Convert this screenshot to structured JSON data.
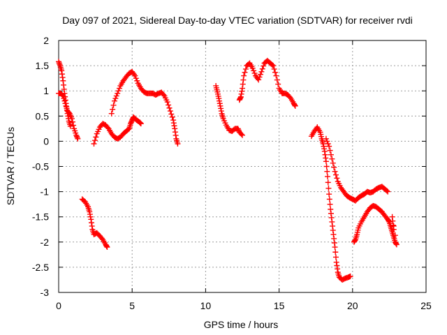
{
  "chart_data": {
    "type": "scatter",
    "title": "Day 097 of 2021, Sidereal Day-to-day VTEC variation (SDTVAR) for receiver rvdi",
    "xlabel": "GPS time / hours",
    "ylabel": "SDTVAR / TECUs",
    "xlim": [
      0,
      25
    ],
    "ylim": [
      -3,
      2
    ],
    "xticks": [
      0,
      5,
      10,
      15,
      20,
      25
    ],
    "yticks": [
      -3,
      -2.5,
      -2,
      -1.5,
      -1,
      -0.5,
      0,
      0.5,
      1,
      1.5,
      2
    ],
    "grid": true,
    "marker": "+",
    "series": [
      {
        "name": "SDTVAR",
        "color": "#ff0000",
        "segments": [
          [
            [
              0.0,
              1.58
            ],
            [
              0.1,
              1.5
            ],
            [
              0.2,
              1.4
            ],
            [
              0.3,
              1.2
            ],
            [
              0.4,
              0.95
            ],
            [
              0.5,
              0.75
            ],
            [
              0.6,
              0.55
            ],
            [
              0.7,
              0.4
            ],
            [
              0.8,
              0.3
            ]
          ],
          [
            [
              0.0,
              0.95
            ],
            [
              0.15,
              0.95
            ],
            [
              0.3,
              0.9
            ],
            [
              0.45,
              0.75
            ],
            [
              0.6,
              0.6
            ],
            [
              0.75,
              0.55
            ],
            [
              0.9,
              0.45
            ],
            [
              1.05,
              0.25
            ],
            [
              1.2,
              0.12
            ],
            [
              1.3,
              0.05
            ]
          ],
          [
            [
              2.4,
              -0.05
            ],
            [
              2.6,
              0.15
            ],
            [
              2.8,
              0.28
            ],
            [
              3.0,
              0.35
            ],
            [
              3.2,
              0.32
            ],
            [
              3.4,
              0.25
            ],
            [
              3.6,
              0.15
            ],
            [
              3.8,
              0.08
            ],
            [
              4.0,
              0.05
            ],
            [
              4.2,
              0.08
            ],
            [
              4.4,
              0.15
            ],
            [
              4.6,
              0.2
            ],
            [
              4.8,
              0.25
            ],
            [
              4.9,
              0.35
            ],
            [
              5.0,
              0.42
            ],
            [
              5.1,
              0.48
            ],
            [
              5.3,
              0.42
            ],
            [
              5.5,
              0.38
            ],
            [
              5.6,
              0.35
            ]
          ],
          [
            [
              3.6,
              0.55
            ],
            [
              3.8,
              0.8
            ],
            [
              4.0,
              0.95
            ],
            [
              4.2,
              1.1
            ],
            [
              4.4,
              1.2
            ],
            [
              4.6,
              1.28
            ],
            [
              4.8,
              1.35
            ],
            [
              5.0,
              1.38
            ],
            [
              5.2,
              1.3
            ],
            [
              5.4,
              1.15
            ],
            [
              5.6,
              1.05
            ],
            [
              5.8,
              0.98
            ],
            [
              6.0,
              0.95
            ],
            [
              6.2,
              0.95
            ],
            [
              6.4,
              0.95
            ],
            [
              6.6,
              0.92
            ],
            [
              6.8,
              0.95
            ],
            [
              7.0,
              0.97
            ],
            [
              7.2,
              0.9
            ],
            [
              7.4,
              0.78
            ],
            [
              7.6,
              0.6
            ],
            [
              7.8,
              0.42
            ],
            [
              7.9,
              0.25
            ],
            [
              8.0,
              0.05
            ],
            [
              8.1,
              -0.05
            ]
          ],
          [
            [
              1.6,
              -1.15
            ],
            [
              1.8,
              -1.2
            ],
            [
              2.0,
              -1.3
            ],
            [
              2.1,
              -1.4
            ],
            [
              2.2,
              -1.55
            ],
            [
              2.3,
              -1.75
            ],
            [
              2.4,
              -1.85
            ],
            [
              2.6,
              -1.82
            ],
            [
              2.8,
              -1.88
            ],
            [
              3.0,
              -1.95
            ],
            [
              3.2,
              -2.05
            ],
            [
              3.3,
              -2.1
            ]
          ],
          [
            [
              10.7,
              1.1
            ],
            [
              10.8,
              0.98
            ],
            [
              10.9,
              0.85
            ],
            [
              11.0,
              0.7
            ],
            [
              11.1,
              0.55
            ],
            [
              11.2,
              0.45
            ],
            [
              11.4,
              0.32
            ],
            [
              11.6,
              0.22
            ],
            [
              11.8,
              0.2
            ],
            [
              12.0,
              0.25
            ],
            [
              12.2,
              0.25
            ],
            [
              12.3,
              0.18
            ],
            [
              12.5,
              0.12
            ]
          ],
          [
            [
              12.3,
              0.82
            ],
            [
              12.4,
              0.88
            ],
            [
              12.5,
              1.05
            ],
            [
              12.6,
              1.3
            ],
            [
              12.8,
              1.5
            ],
            [
              13.0,
              1.55
            ],
            [
              13.2,
              1.45
            ],
            [
              13.4,
              1.3
            ],
            [
              13.6,
              1.22
            ],
            [
              13.8,
              1.38
            ],
            [
              14.0,
              1.55
            ],
            [
              14.2,
              1.6
            ],
            [
              14.4,
              1.55
            ],
            [
              14.6,
              1.5
            ],
            [
              14.8,
              1.3
            ],
            [
              15.0,
              1.05
            ],
            [
              15.2,
              0.95
            ],
            [
              15.4,
              0.95
            ],
            [
              15.6,
              0.92
            ],
            [
              15.8,
              0.85
            ],
            [
              16.0,
              0.75
            ],
            [
              16.1,
              0.7
            ]
          ],
          [
            [
              17.2,
              0.1
            ],
            [
              17.4,
              0.2
            ],
            [
              17.6,
              0.28
            ],
            [
              17.8,
              0.18
            ],
            [
              17.9,
              0.05
            ],
            [
              18.0,
              -0.05
            ],
            [
              18.1,
              -0.2
            ],
            [
              18.2,
              -0.4
            ],
            [
              18.3,
              -0.7
            ],
            [
              18.4,
              -1.05
            ],
            [
              18.5,
              -1.35
            ],
            [
              18.6,
              -1.6
            ],
            [
              18.7,
              -1.85
            ],
            [
              18.8,
              -2.1
            ],
            [
              18.9,
              -2.4
            ],
            [
              19.0,
              -2.6
            ],
            [
              19.1,
              -2.7
            ],
            [
              19.3,
              -2.75
            ],
            [
              19.5,
              -2.72
            ],
            [
              19.7,
              -2.7
            ],
            [
              19.85,
              -2.68
            ]
          ],
          [
            [
              18.2,
              0.05
            ],
            [
              18.4,
              -0.1
            ],
            [
              18.6,
              -0.35
            ],
            [
              18.8,
              -0.6
            ],
            [
              19.0,
              -0.8
            ],
            [
              19.2,
              -0.92
            ],
            [
              19.4,
              -1.0
            ],
            [
              19.6,
              -1.08
            ],
            [
              19.8,
              -1.12
            ],
            [
              20.0,
              -1.15
            ],
            [
              20.2,
              -1.18
            ],
            [
              20.4,
              -1.12
            ],
            [
              20.6,
              -1.08
            ],
            [
              20.8,
              -1.05
            ],
            [
              21.0,
              -1.0
            ],
            [
              21.2,
              -1.02
            ],
            [
              21.4,
              -1.0
            ],
            [
              21.6,
              -0.95
            ],
            [
              21.8,
              -0.92
            ],
            [
              22.0,
              -0.9
            ],
            [
              22.2,
              -0.95
            ],
            [
              22.4,
              -1.0
            ]
          ],
          [
            [
              20.1,
              -2.0
            ],
            [
              20.2,
              -1.95
            ],
            [
              20.3,
              -1.85
            ],
            [
              20.4,
              -1.72
            ],
            [
              20.6,
              -1.6
            ],
            [
              20.8,
              -1.5
            ],
            [
              21.0,
              -1.4
            ],
            [
              21.2,
              -1.32
            ],
            [
              21.4,
              -1.28
            ],
            [
              21.6,
              -1.3
            ],
            [
              21.8,
              -1.35
            ],
            [
              22.0,
              -1.4
            ],
            [
              22.2,
              -1.48
            ],
            [
              22.4,
              -1.55
            ],
            [
              22.5,
              -1.6
            ],
            [
              22.6,
              -1.7
            ],
            [
              22.7,
              -1.8
            ],
            [
              22.8,
              -1.9
            ],
            [
              22.9,
              -2.0
            ],
            [
              23.0,
              -2.05
            ],
            [
              22.7,
              -1.5
            ],
            [
              22.8,
              -1.75
            ]
          ]
        ]
      }
    ]
  }
}
